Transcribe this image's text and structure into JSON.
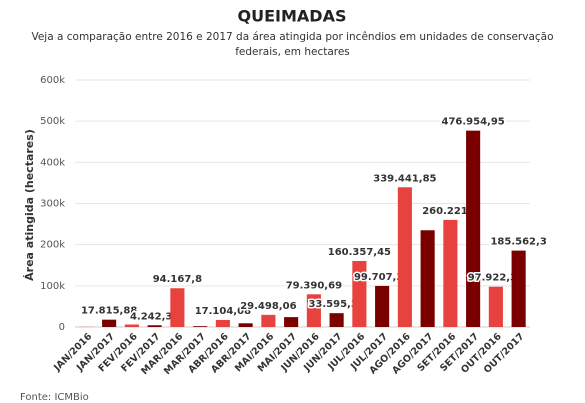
{
  "chart_data": {
    "type": "bar",
    "title": "QUEIMADAS",
    "subtitle": "Veja a comparação entre 2016 e 2017 da área atingida por incêndios em unidades de conservação federais, em hectares",
    "y_label": "Área atingida (hectares)",
    "source": "Fonte: ICMBio",
    "categories": [
      "JAN/2016",
      "JAN/2017",
      "FEV/2016",
      "FEV/2017",
      "MAR/2016",
      "MAR/2017",
      "ABR/2016",
      "ABR/2017",
      "MAI/2016",
      "MAI/2017",
      "JUN/2016",
      "JUN/2017",
      "JUL/2016",
      "JUL/2017",
      "AGO/2016",
      "AGO/2017",
      "SET/2016",
      "SET/2017",
      "OUT/2016",
      "OUT/2017"
    ],
    "values": [
      500,
      17815.88,
      6000,
      4242.35,
      94167.8,
      2000,
      17104.08,
      9000,
      29498.06,
      24000,
      79390.69,
      33595.32,
      160357.45,
      99707.37,
      339441.85,
      235000,
      260221.1,
      476954.95,
      97922.39,
      185562.3
    ],
    "value_labels": [
      null,
      "17.815,88",
      null,
      "4.242,35",
      "94.167,8",
      null,
      "17.104,08",
      null,
      "29.498,06",
      null,
      "79.390,69",
      "33.595,32",
      "160.357,45",
      "99.707,37",
      "339.441,85",
      null,
      "260.221,1",
      "476.954,95",
      "97.922,39",
      "185.562,3"
    ],
    "colors": [
      "#e8423f",
      "#7a0000",
      "#e8423f",
      "#7a0000",
      "#e8423f",
      "#7a0000",
      "#e8423f",
      "#7a0000",
      "#e8423f",
      "#7a0000",
      "#e8423f",
      "#7a0000",
      "#e8423f",
      "#7a0000",
      "#e8423f",
      "#7a0000",
      "#e8423f",
      "#7a0000",
      "#e8423f",
      "#7a0000"
    ],
    "ylim": [
      0,
      600000
    ],
    "yticks": [
      0,
      {
        "value": 100000,
        "label": "100k"
      },
      {
        "value": 200000,
        "label": "200k"
      },
      {
        "value": 300000,
        "label": "300k"
      },
      {
        "value": 400000,
        "label": "400k"
      },
      {
        "value": 500000,
        "label": "500k"
      },
      {
        "value": 600000,
        "label": "600k"
      }
    ],
    "grid": true
  }
}
